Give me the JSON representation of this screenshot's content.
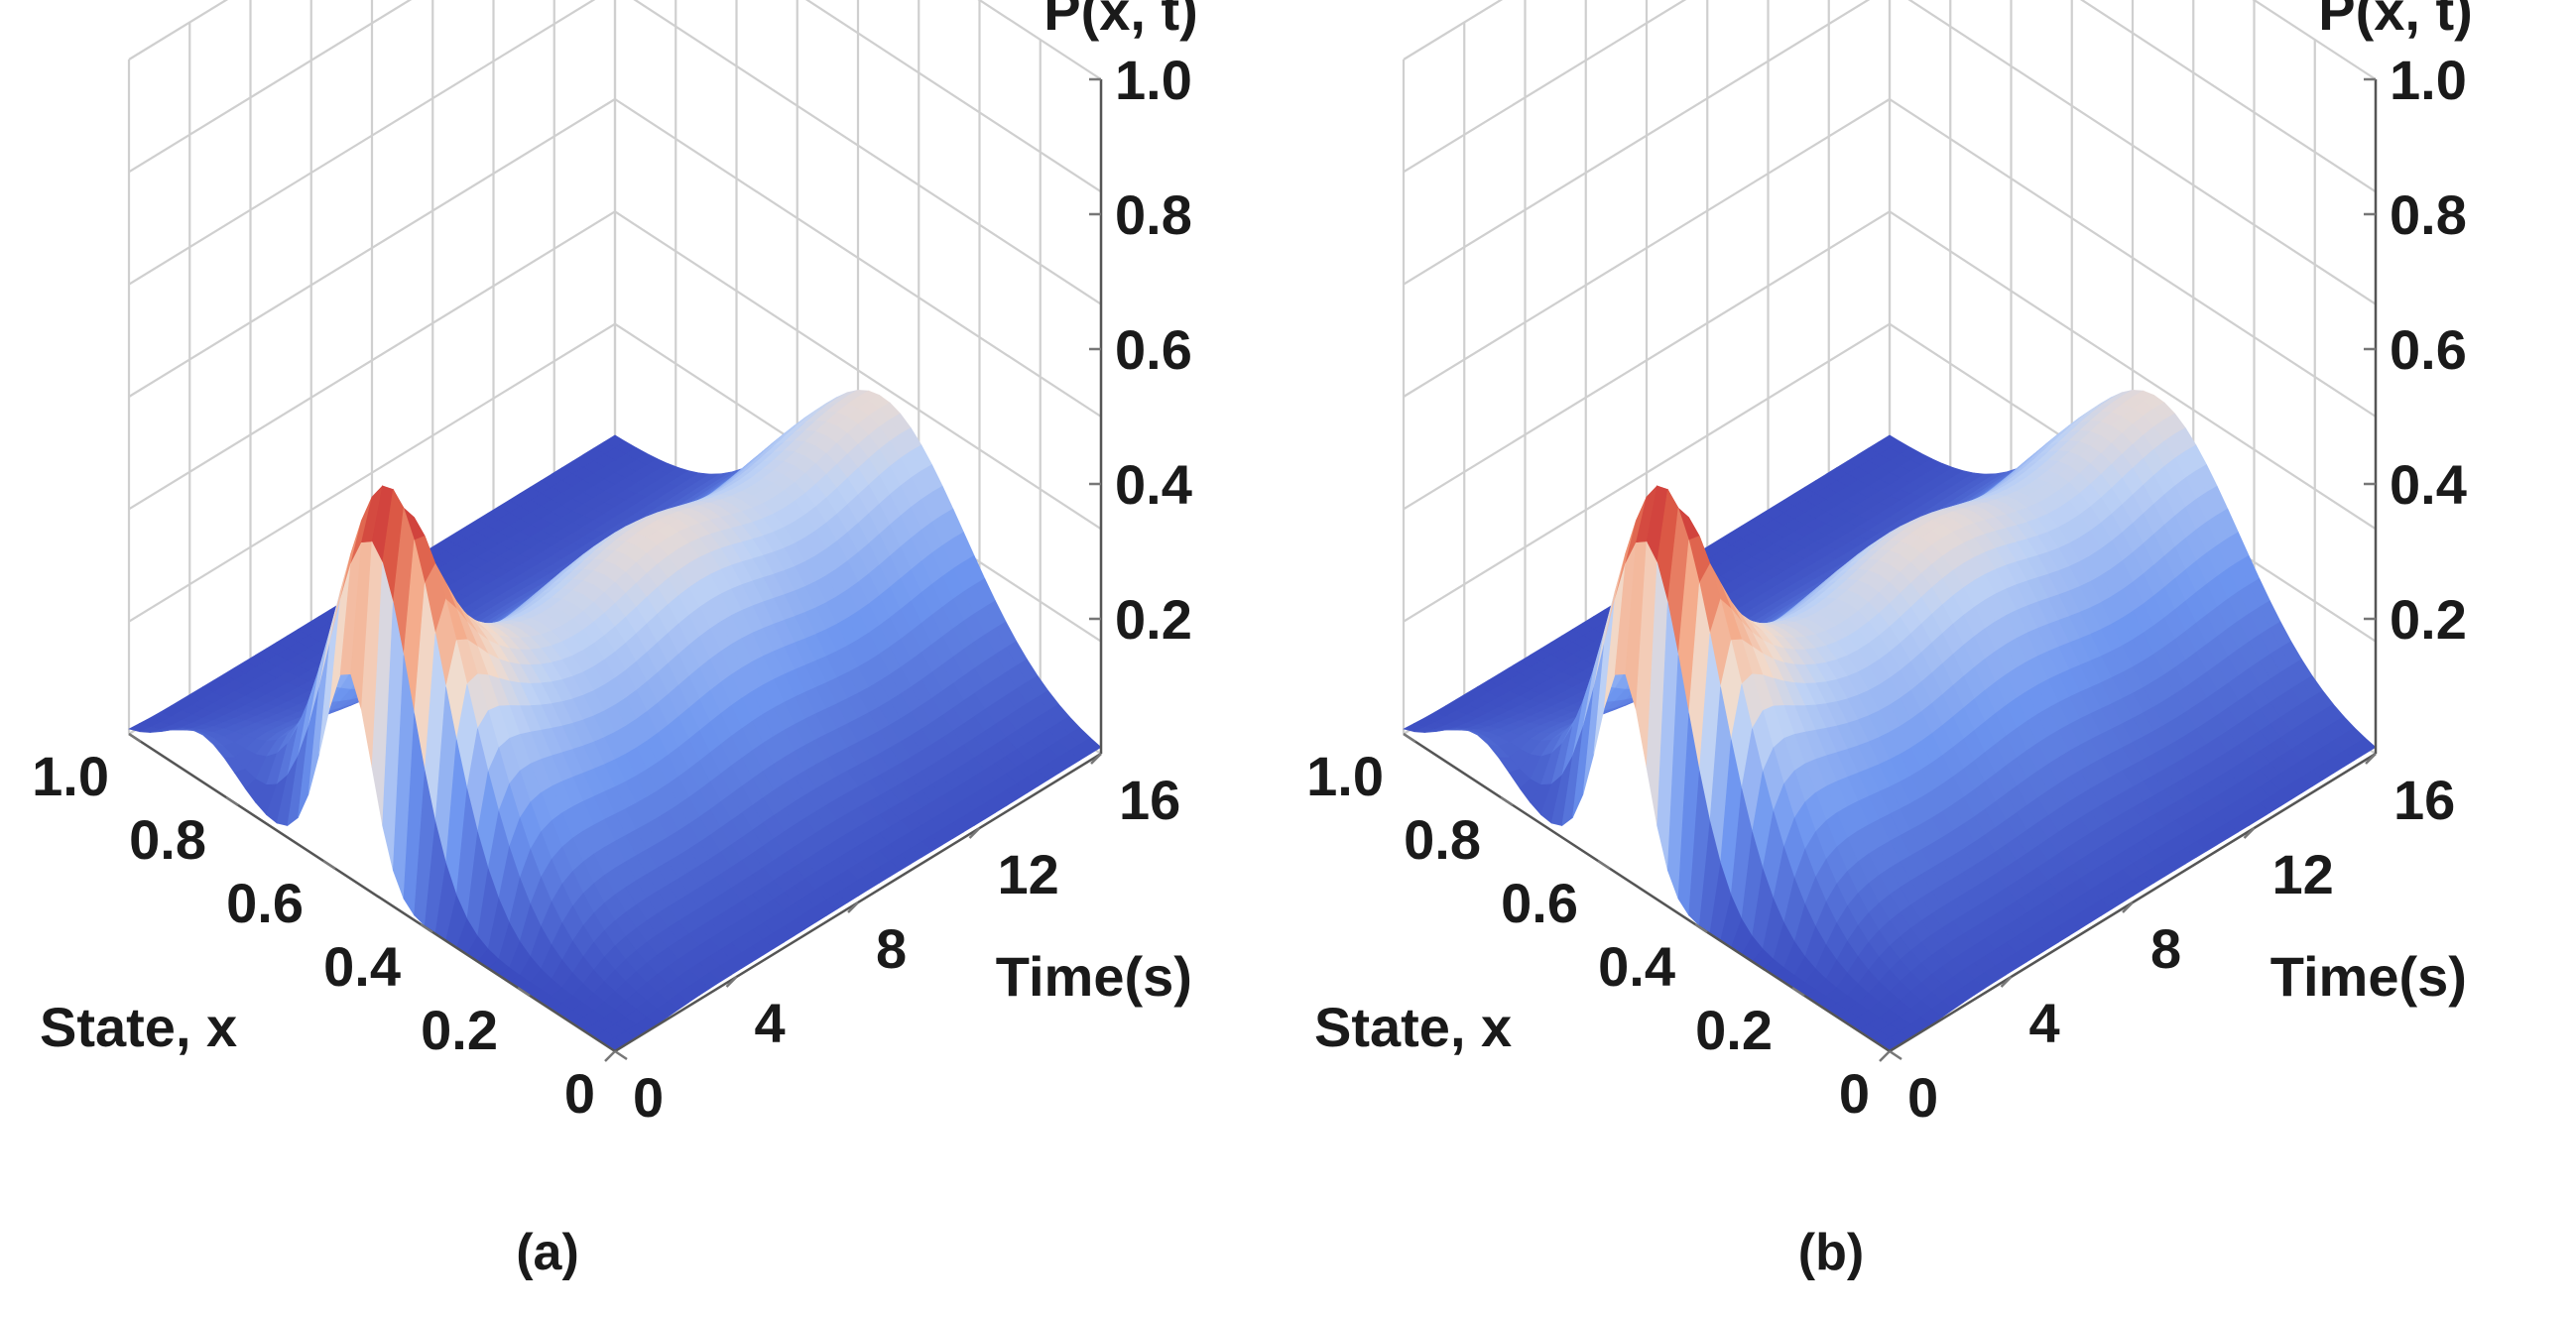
{
  "figure": {
    "panels": [
      {
        "id": "a",
        "caption": "(a)"
      },
      {
        "id": "b",
        "caption": "(b)"
      }
    ]
  },
  "chart_data": [
    {
      "type": "surface3d",
      "panel": "(a)",
      "title": "",
      "zlabel": "P(x, t)",
      "xlabel": "State, x",
      "ylabel": "Time(s)",
      "x_ticks": [
        "1.0",
        "0.8",
        "0.6",
        "0.4",
        "0.2",
        "0"
      ],
      "t_ticks": [
        "0",
        "4",
        "8",
        "12",
        "16"
      ],
      "z_ticks": [
        "0.2",
        "0.4",
        "0.6",
        "0.8",
        "1.0"
      ],
      "xlim": [
        0,
        1
      ],
      "tlim": [
        0,
        16
      ],
      "zlim": [
        0,
        1
      ],
      "colormap": "coolwarm",
      "surface": {
        "description_params": {
          "initial_peak": {
            "x": 0.55,
            "t": 0.8,
            "height": 0.6,
            "width_x": 0.05
          },
          "steady_state_mean": 0.45,
          "steady_state_height": 0.3
        }
      }
    },
    {
      "type": "surface3d",
      "panel": "(b)",
      "title": "",
      "zlabel": "P(x, t)",
      "xlabel": "State, x",
      "ylabel": "Time(s)",
      "x_ticks": [
        "1.0",
        "0.8",
        "0.6",
        "0.4",
        "0.2",
        "0"
      ],
      "t_ticks": [
        "0",
        "4",
        "8",
        "12",
        "16"
      ],
      "z_ticks": [
        "0.2",
        "0.4",
        "0.6",
        "0.8",
        "1.0"
      ],
      "xlim": [
        0,
        1
      ],
      "tlim": [
        0,
        16
      ],
      "zlim": [
        0,
        1
      ],
      "colormap": "coolwarm",
      "surface": {
        "description_params": {
          "initial_peak": {
            "x": 0.55,
            "t": 0.8,
            "height": 0.6,
            "width_x": 0.05
          },
          "steady_state_mean": 0.45,
          "steady_state_height": 0.3
        }
      }
    }
  ]
}
